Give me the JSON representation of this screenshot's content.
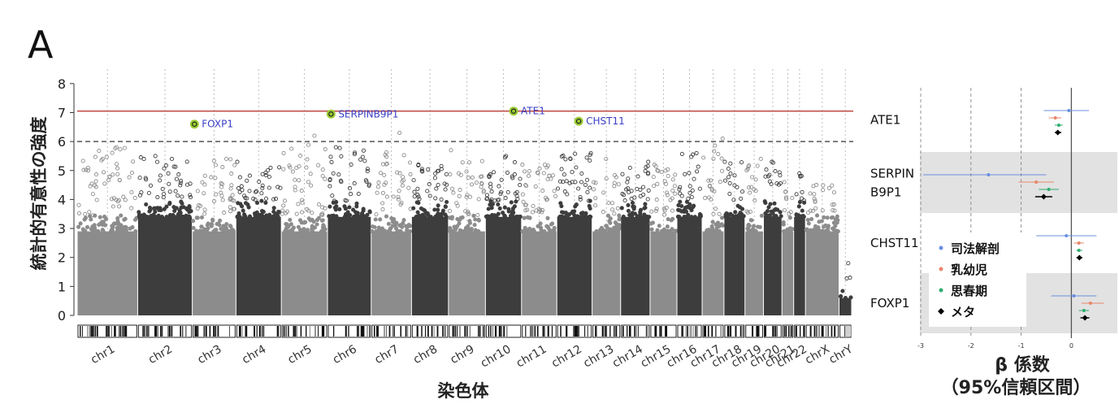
{
  "panel_label": "A",
  "chart_data": [
    {
      "type": "scatter",
      "subtype": "manhattan",
      "ylabel": "統計的有意性の強度",
      "xlabel": "染色体",
      "ylim": [
        0,
        8.5
      ],
      "y_ticks": [
        "0",
        "1",
        "2",
        "3",
        "4",
        "5",
        "6",
        "7",
        "8"
      ],
      "genome_wide_threshold": 7.05,
      "suggestive_threshold": 6.0,
      "chromosomes": [
        {
          "label": "chr1",
          "shade": "light",
          "top": 5.8
        },
        {
          "label": "chr2",
          "shade": "dark",
          "top": 5.5
        },
        {
          "label": "chr3",
          "shade": "light",
          "top": 5.4
        },
        {
          "label": "chr4",
          "shade": "dark",
          "top": 5.3
        },
        {
          "label": "chr5",
          "shade": "light",
          "top": 6.2
        },
        {
          "label": "chr6",
          "shade": "dark",
          "top": 5.8
        },
        {
          "label": "chr7",
          "shade": "light",
          "top": 6.3
        },
        {
          "label": "chr8",
          "shade": "dark",
          "top": 5.2
        },
        {
          "label": "chr9",
          "shade": "light",
          "top": 5.7
        },
        {
          "label": "chr10",
          "shade": "dark",
          "top": 5.5
        },
        {
          "label": "chr11",
          "shade": "light",
          "top": 5.2
        },
        {
          "label": "chr12",
          "shade": "dark",
          "top": 5.6
        },
        {
          "label": "chr13",
          "shade": "light",
          "top": 5.4
        },
        {
          "label": "chr14",
          "shade": "dark",
          "top": 5.3
        },
        {
          "label": "chr15",
          "shade": "light",
          "top": 5.2
        },
        {
          "label": "chr16",
          "shade": "dark",
          "top": 5.6
        },
        {
          "label": "chr17",
          "shade": "light",
          "top": 6.1
        },
        {
          "label": "chr18",
          "shade": "dark",
          "top": 5.3
        },
        {
          "label": "chr19",
          "shade": "light",
          "top": 5.4
        },
        {
          "label": "chr20",
          "shade": "dark",
          "top": 5.3
        },
        {
          "label": "chr21",
          "shade": "light",
          "top": 4.6
        },
        {
          "label": "chr22",
          "shade": "dark",
          "top": 4.9
        },
        {
          "label": "chrX",
          "shade": "light",
          "top": 4.5
        },
        {
          "label": "chrY",
          "shade": "dark",
          "top": 1.8
        }
      ],
      "highlighted_snps": [
        {
          "gene": "FOXP1",
          "chr": "chr3",
          "y": 6.6
        },
        {
          "gene": "SERPINB9P1",
          "chr": "chr6",
          "y": 6.95
        },
        {
          "gene": "ATE1",
          "chr": "chr10",
          "y": 7.05
        },
        {
          "gene": "CHST11",
          "chr": "chr12",
          "y": 6.7
        }
      ],
      "colors": {
        "light": "#8c8c8c",
        "dark": "#3d3d3d",
        "threshold": "#c0504d",
        "highlight": "#9acd32",
        "gene_label": "#3a3fc4"
      }
    },
    {
      "type": "forest",
      "xlabel": "β 係数",
      "xlabel_sub": "（95%信頼区間）",
      "xlim": [
        -3,
        0.9
      ],
      "x_ticks": [
        "-3",
        "-2",
        "-1",
        "0"
      ],
      "genes": [
        "ATE1",
        "SERPIN\nB9P1",
        "CHST11",
        "FOXP1"
      ],
      "series": [
        {
          "name": "司法解剖",
          "color": "#6a8fe0",
          "marker": "dot",
          "estimates": [
            {
              "gene": "ATE1",
              "beta": -0.05,
              "lo": -0.55,
              "hi": 0.35
            },
            {
              "gene": "SERPINB9P1",
              "beta": -1.65,
              "lo": -2.95,
              "hi": -0.5
            },
            {
              "gene": "CHST11",
              "beta": -0.1,
              "lo": -0.7,
              "hi": 0.5
            },
            {
              "gene": "FOXP1",
              "beta": 0.05,
              "lo": -0.4,
              "hi": 0.5
            }
          ]
        },
        {
          "name": "乳幼児",
          "color": "#e8856a",
          "marker": "dot",
          "estimates": [
            {
              "gene": "ATE1",
              "beta": -0.32,
              "lo": -0.45,
              "hi": -0.2
            },
            {
              "gene": "SERPINB9P1",
              "beta": -0.7,
              "lo": -1.05,
              "hi": -0.35
            },
            {
              "gene": "CHST11",
              "beta": 0.15,
              "lo": 0.05,
              "hi": 0.25
            },
            {
              "gene": "FOXP1",
              "beta": 0.38,
              "lo": 0.2,
              "hi": 0.65
            }
          ]
        },
        {
          "name": "思春期",
          "color": "#2fae6f",
          "marker": "dot",
          "estimates": [
            {
              "gene": "ATE1",
              "beta": -0.25,
              "lo": -0.33,
              "hi": -0.17
            },
            {
              "gene": "SERPINB9P1",
              "beta": -0.45,
              "lo": -0.65,
              "hi": -0.25
            },
            {
              "gene": "CHST11",
              "beta": 0.15,
              "lo": 0.1,
              "hi": 0.22
            },
            {
              "gene": "FOXP1",
              "beta": 0.25,
              "lo": 0.15,
              "hi": 0.35
            }
          ]
        },
        {
          "name": "メタ",
          "color": "#000000",
          "marker": "diamond",
          "estimates": [
            {
              "gene": "ATE1",
              "beta": -0.27,
              "lo": -0.33,
              "hi": -0.2
            },
            {
              "gene": "SERPINB9P1",
              "beta": -0.55,
              "lo": -0.72,
              "hi": -0.38
            },
            {
              "gene": "CHST11",
              "beta": 0.16,
              "lo": 0.1,
              "hi": 0.22
            },
            {
              "gene": "FOXP1",
              "beta": 0.27,
              "lo": 0.18,
              "hi": 0.36
            }
          ]
        }
      ],
      "legend_placement": "bottom-left"
    }
  ]
}
